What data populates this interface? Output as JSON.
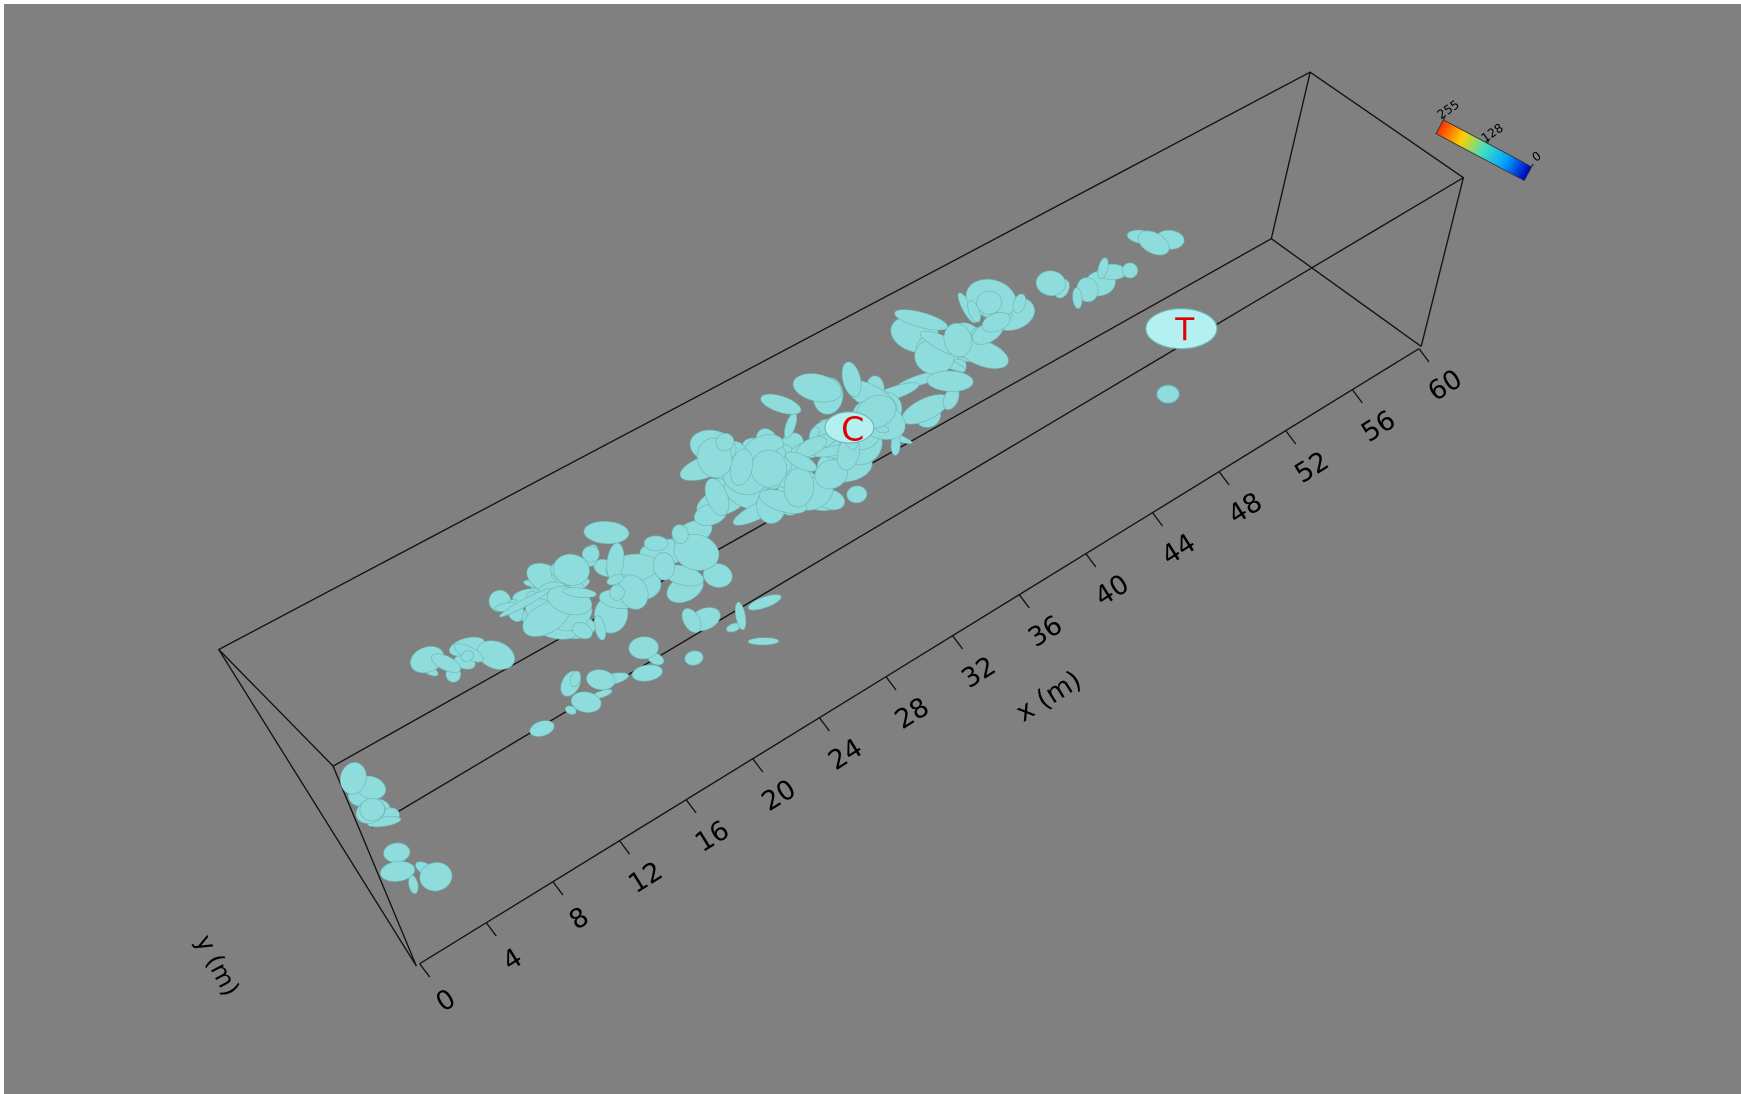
{
  "chart_data": {
    "type": "isosurface3d",
    "x_label": "x (m)",
    "y_label": "y (m)",
    "xlim": [
      0,
      60
    ],
    "xticks": [
      0,
      4,
      8,
      12,
      16,
      20,
      24,
      28,
      32,
      36,
      40,
      44,
      48,
      52,
      56,
      60
    ],
    "surface_color": "#8fdcdc",
    "annotations": [
      "C",
      "T"
    ],
    "colorbar": {
      "lim": [
        0,
        255
      ],
      "ticks": [
        0,
        128,
        255
      ]
    }
  }
}
